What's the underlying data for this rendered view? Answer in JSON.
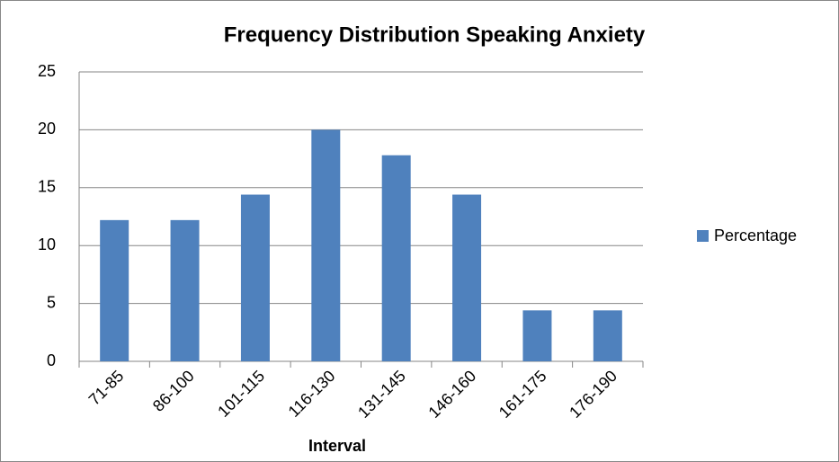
{
  "chart_data": {
    "type": "bar",
    "title": "Frequency Distribution Speaking Anxiety",
    "x_label": "Interval",
    "categories": [
      "71-85",
      "86-100",
      "101-115",
      "116-130",
      "131-145",
      "146-160",
      "161-175",
      "176-190"
    ],
    "series": [
      {
        "name": "Percentage",
        "color": "#4f81bd",
        "values": [
          12.2,
          12.2,
          14.4,
          20,
          17.8,
          14.4,
          4.4,
          4.4
        ]
      }
    ],
    "ylim": [
      0,
      25
    ],
    "yticks": [
      0,
      5,
      10,
      15,
      20,
      25
    ],
    "grid": true,
    "legend": "right"
  }
}
